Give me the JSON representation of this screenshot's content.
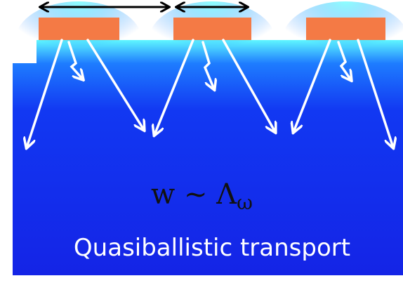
{
  "formula": "w ~ Λ",
  "formula_subscript": "ω",
  "caption": "Quasiballistic transport"
}
